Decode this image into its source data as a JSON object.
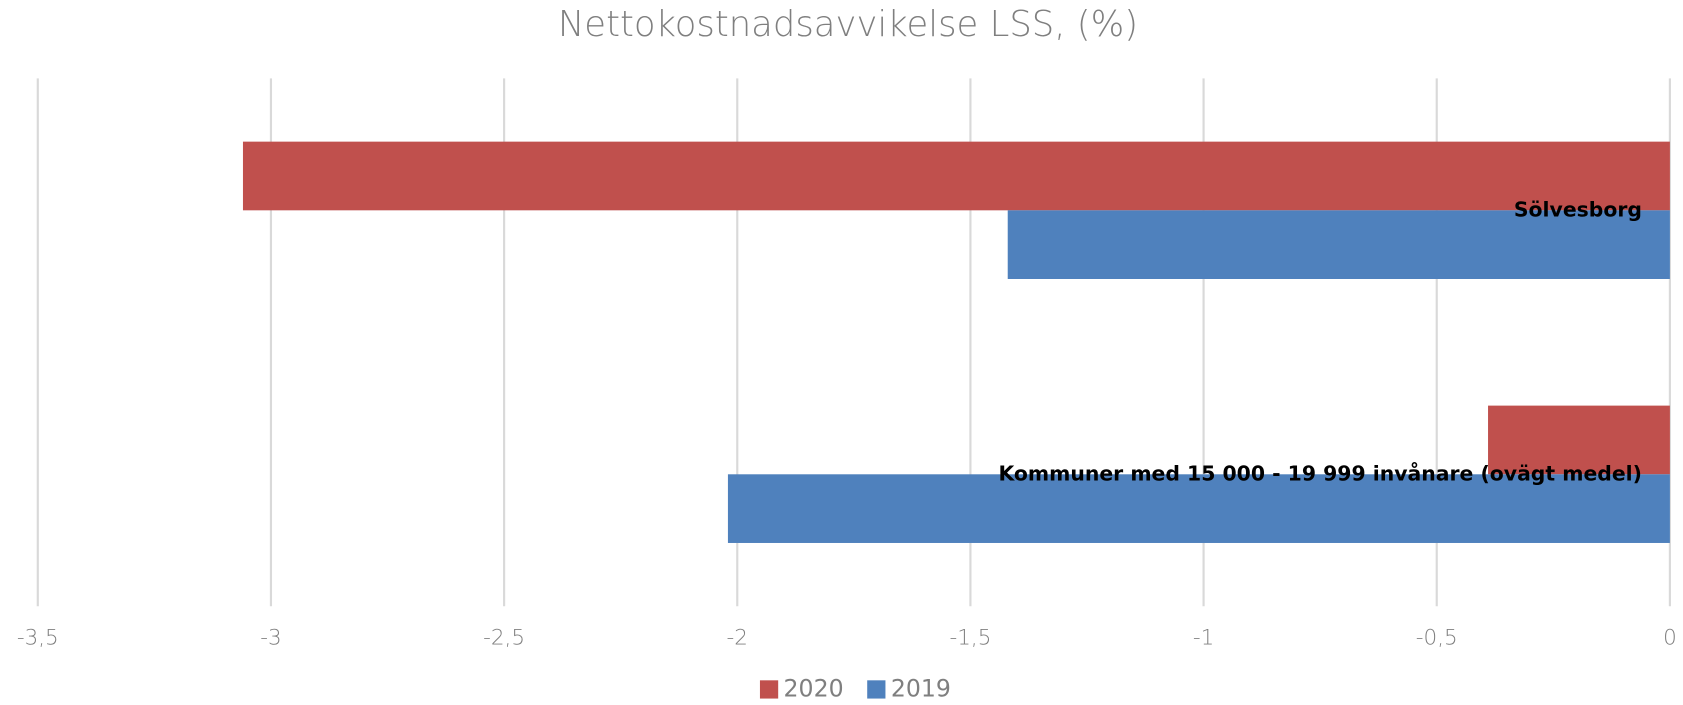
{
  "chart_data": {
    "type": "hbar",
    "title": "Nettokostnadsavvikelse LSS, (%)",
    "categories": [
      "Sölvesborg",
      "Kommuner med 15 000 - 19 999 invånare (ovägt medel)"
    ],
    "series": [
      {
        "name": "2020",
        "color": "#c0504d",
        "values": [
          -3.06,
          -0.39
        ]
      },
      {
        "name": "2019",
        "color": "#4f81bd",
        "values": [
          -1.42,
          -2.02
        ]
      }
    ],
    "xlim": [
      -3.5,
      0
    ],
    "xticks": [
      {
        "value": -3.5,
        "label": "-3,5"
      },
      -3,
      {
        "value": -2.5,
        "label": "-2,5"
      },
      -2,
      {
        "value": -1.5,
        "label": "-1,5"
      },
      -1,
      {
        "value": -0.5,
        "label": "-0,5"
      },
      0
    ],
    "grid": true,
    "legend": "bottom"
  }
}
